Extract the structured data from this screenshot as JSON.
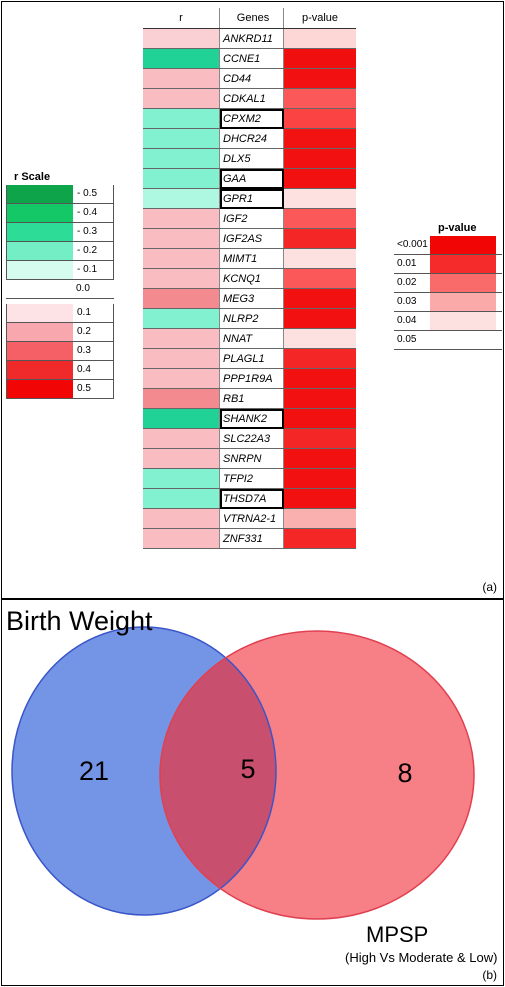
{
  "panel_a": {
    "label": "(a)",
    "table": {
      "headers": {
        "r": "r",
        "genes": "Genes",
        "p": "p-value"
      },
      "rows": [
        {
          "gene": "ANKRD11",
          "r_color": "#fbd0d4",
          "p_color": "#fdd6d6",
          "boxed": false
        },
        {
          "gene": "CCNE1",
          "r_color": "#21d296",
          "p_color": "#f00e0e",
          "boxed": false
        },
        {
          "gene": "CD44",
          "r_color": "#f9bcc0",
          "p_color": "#f21010",
          "boxed": false
        },
        {
          "gene": "CDKAL1",
          "r_color": "#f9bcc0",
          "p_color": "#fb5959",
          "boxed": false
        },
        {
          "gene": "CPXM2",
          "r_color": "#82f1d0",
          "p_color": "#fb4343",
          "boxed": true
        },
        {
          "gene": "DHCR24",
          "r_color": "#82f1d0",
          "p_color": "#f21212",
          "boxed": false
        },
        {
          "gene": "DLX5",
          "r_color": "#82f1d0",
          "p_color": "#f21010",
          "boxed": false
        },
        {
          "gene": "GAA",
          "r_color": "#82f1d0",
          "p_color": "#f21010",
          "boxed": true
        },
        {
          "gene": "GPR1",
          "r_color": "#aef8e2",
          "p_color": "#fde0e0",
          "boxed": true
        },
        {
          "gene": "IGF2",
          "r_color": "#f9bcc0",
          "p_color": "#fb5959",
          "boxed": false
        },
        {
          "gene": "IGF2AS",
          "r_color": "#f9bcc0",
          "p_color": "#f52626",
          "boxed": false
        },
        {
          "gene": "MIMT1",
          "r_color": "#f9bcc0",
          "p_color": "#fde0e0",
          "boxed": false
        },
        {
          "gene": "KCNQ1",
          "r_color": "#f9bcc0",
          "p_color": "#fb5959",
          "boxed": false
        },
        {
          "gene": "MEG3",
          "r_color": "#f38a90",
          "p_color": "#f21010",
          "boxed": false
        },
        {
          "gene": "NLRP2",
          "r_color": "#82f1d0",
          "p_color": "#f21010",
          "boxed": false
        },
        {
          "gene": "NNAT",
          "r_color": "#f9bcc0",
          "p_color": "#fde0e0",
          "boxed": false
        },
        {
          "gene": "PLAGL1",
          "r_color": "#f9bcc0",
          "p_color": "#f52626",
          "boxed": false
        },
        {
          "gene": "PPP1R9A",
          "r_color": "#f9bcc0",
          "p_color": "#f21010",
          "boxed": false
        },
        {
          "gene": "RB1",
          "r_color": "#f38a90",
          "p_color": "#f21010",
          "boxed": false
        },
        {
          "gene": "SHANK2",
          "r_color": "#21d296",
          "p_color": "#f21010",
          "boxed": true
        },
        {
          "gene": "SLC22A3",
          "r_color": "#f9bcc0",
          "p_color": "#f52626",
          "boxed": false
        },
        {
          "gene": "SNRPN",
          "r_color": "#f9bcc0",
          "p_color": "#f21010",
          "boxed": false
        },
        {
          "gene": "TFPI2",
          "r_color": "#82f1d0",
          "p_color": "#f21010",
          "boxed": false
        },
        {
          "gene": "THSD7A",
          "r_color": "#82f1d0",
          "p_color": "#f21010",
          "boxed": true
        },
        {
          "gene": "VTRNA2-1",
          "r_color": "#f9bcc0",
          "p_color": "#fbb0b0",
          "boxed": false
        },
        {
          "gene": "ZNF331",
          "r_color": "#f9bcc0",
          "p_color": "#f52626",
          "boxed": false
        }
      ]
    },
    "r_scale": {
      "title": "r Scale",
      "negative": [
        {
          "label": "- 0.5",
          "color": "#0da44a"
        },
        {
          "label": "- 0.4",
          "color": "#14c767"
        },
        {
          "label": "- 0.3",
          "color": "#2ddc97"
        },
        {
          "label": "- 0.2",
          "color": "#74eec5"
        },
        {
          "label": "- 0.1",
          "color": "#d6fbef"
        }
      ],
      "zero": {
        "label": "0.0",
        "color": "#ffffff"
      },
      "positive": [
        {
          "label": "0.1",
          "color": "#fde3e5"
        },
        {
          "label": "0.2",
          "color": "#f7a7ad"
        },
        {
          "label": "0.3",
          "color": "#f46066"
        },
        {
          "label": "0.4",
          "color": "#f02a2a"
        },
        {
          "label": "0.5",
          "color": "#f20505"
        }
      ]
    },
    "p_scale": {
      "title": "p-value",
      "items": [
        {
          "label": "<0.001",
          "color": "#f20505"
        },
        {
          "label": "0.01",
          "color": "#f52b2b"
        },
        {
          "label": "0.02",
          "color": "#f96a6a"
        },
        {
          "label": "0.03",
          "color": "#fbaaaa"
        },
        {
          "label": "0.04",
          "color": "#fde0e0"
        },
        {
          "label": "0.05",
          "color": "#ffffff"
        }
      ]
    }
  },
  "panel_b": {
    "label": "(b)",
    "left_set": {
      "title": "Birth Weight",
      "only_count": "21",
      "color": "#7494e6",
      "stroke": "#3a55c9"
    },
    "right_set": {
      "title": "MPSP",
      "subtitle": "(High Vs Moderate & Low)",
      "only_count": "8",
      "color": "#f77f86",
      "stroke": "#e04050"
    },
    "intersection_count": "5",
    "intersection_color": "#c8506e"
  }
}
